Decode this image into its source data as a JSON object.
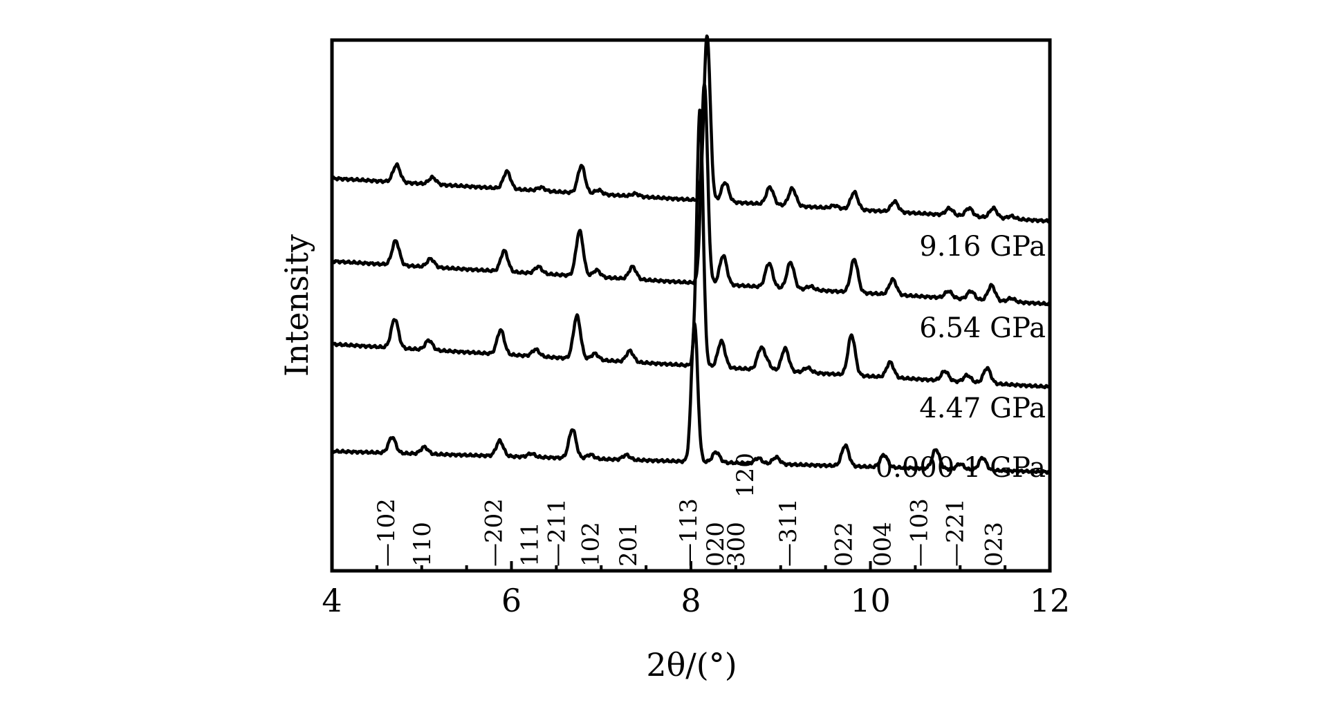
{
  "chart_data": {
    "type": "line",
    "xlabel": "2θ/(°)",
    "ylabel": "Intensity",
    "xlim": [
      4,
      12
    ],
    "xticks": [
      4,
      6,
      8,
      10,
      12
    ],
    "grid": false,
    "series": [
      {
        "name": "9.16 GPa",
        "start": 62,
        "end": 0,
        "peaks": [
          [
            4.72,
            25
          ],
          [
            5.12,
            10
          ],
          [
            5.95,
            25
          ],
          [
            6.33,
            5
          ],
          [
            6.78,
            40
          ],
          [
            6.97,
            6
          ],
          [
            7.38,
            4
          ],
          [
            8.18,
            240
          ],
          [
            8.38,
            28
          ],
          [
            8.88,
            25
          ],
          [
            9.13,
            25
          ],
          [
            9.6,
            4
          ],
          [
            9.82,
            25
          ],
          [
            10.27,
            15
          ],
          [
            10.88,
            10
          ],
          [
            11.1,
            12
          ],
          [
            11.37,
            14
          ],
          [
            11.57,
            4
          ]
        ]
      },
      {
        "name": "6.54 GPa",
        "start": 62,
        "end": 0,
        "peaks": [
          [
            4.71,
            35
          ],
          [
            5.1,
            12
          ],
          [
            5.92,
            30
          ],
          [
            6.3,
            10
          ],
          [
            6.76,
            65
          ],
          [
            6.95,
            10
          ],
          [
            7.35,
            18
          ],
          [
            8.15,
            290
          ],
          [
            8.36,
            42
          ],
          [
            8.87,
            35
          ],
          [
            9.11,
            38
          ],
          [
            9.33,
            5
          ],
          [
            9.82,
            48
          ],
          [
            10.25,
            22
          ],
          [
            10.87,
            10
          ],
          [
            11.12,
            12
          ],
          [
            11.35,
            22
          ],
          [
            11.57,
            5
          ]
        ]
      },
      {
        "name": "4.47 GPa",
        "start": 62,
        "end": 0,
        "peaks": [
          [
            4.7,
            42
          ],
          [
            5.08,
            14
          ],
          [
            5.88,
            35
          ],
          [
            6.27,
            10
          ],
          [
            6.73,
            62
          ],
          [
            6.93,
            9
          ],
          [
            7.32,
            16
          ],
          [
            8.1,
            370
          ],
          [
            8.34,
            38
          ],
          [
            8.78,
            30
          ],
          [
            8.85,
            10
          ],
          [
            9.05,
            33
          ],
          [
            9.3,
            7
          ],
          [
            9.79,
            58
          ],
          [
            10.22,
            22
          ],
          [
            10.83,
            14
          ],
          [
            11.08,
            10
          ],
          [
            11.3,
            22
          ]
        ]
      },
      {
        "name": "0.000 1 GPa",
        "start": 30,
        "end": 0,
        "peaks": [
          [
            4.67,
            23
          ],
          [
            5.03,
            10
          ],
          [
            5.87,
            22
          ],
          [
            6.22,
            5
          ],
          [
            6.68,
            42
          ],
          [
            6.88,
            6
          ],
          [
            7.28,
            7
          ],
          [
            8.04,
            200
          ],
          [
            8.28,
            15
          ],
          [
            8.75,
            8
          ],
          [
            8.95,
            10
          ],
          [
            9.72,
            30
          ],
          [
            10.15,
            18
          ],
          [
            10.73,
            28
          ],
          [
            11.0,
            8
          ],
          [
            11.25,
            18
          ]
        ]
      }
    ],
    "reflections": [
      {
        "label": "—102",
        "x": 4.6
      },
      {
        "label": "110",
        "x": 5.0
      },
      {
        "label": "—202",
        "x": 5.8
      },
      {
        "label": "111",
        "x": 6.2
      },
      {
        "label": "—211",
        "x": 6.5
      },
      {
        "label": "102",
        "x": 6.88
      },
      {
        "label": "201",
        "x": 7.3
      },
      {
        "label": "—113",
        "x": 7.97
      },
      {
        "label": "020",
        "x": 8.27
      },
      {
        "label": "300",
        "x": 8.5
      },
      {
        "label": "120",
        "x": 8.6
      },
      {
        "label": "—311",
        "x": 9.08
      },
      {
        "label": "022",
        "x": 9.7
      },
      {
        "label": "004",
        "x": 10.13
      },
      {
        "label": "—103",
        "x": 10.54
      },
      {
        "label": "—221",
        "x": 10.94
      },
      {
        "label": "023",
        "x": 11.37
      }
    ]
  }
}
